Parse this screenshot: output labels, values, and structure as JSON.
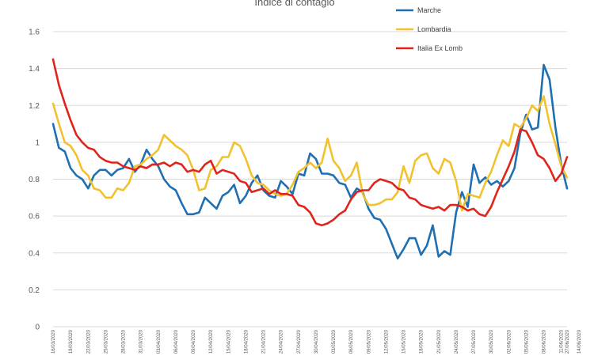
{
  "chart_data": {
    "type": "line",
    "title": "Indice di contagio",
    "xlabel": "",
    "ylabel": "",
    "ylim": [
      0,
      1.6
    ],
    "yticks": [
      0,
      0.2,
      0.4,
      0.6,
      0.8,
      1,
      1.2,
      1.4,
      1.6
    ],
    "ytick_labels": [
      "0",
      "0.2",
      "0.4",
      "0.6",
      "0.8",
      "1",
      "1.2",
      "1.4",
      "1.6"
    ],
    "grid": true,
    "legend_position": "top-right",
    "x_start": "2020-03-16",
    "x_end": "2020-06-27",
    "x_tick_labels": [
      "16/03/2020",
      "19/03/2020",
      "22/03/2020",
      "25/03/2020",
      "28/03/2020",
      "31/03/2020",
      "03/04/2020",
      "06/04/2020",
      "09/04/2020",
      "12/04/2020",
      "15/04/2020",
      "18/04/2020",
      "21/04/2020",
      "24/04/2020",
      "27/04/2020",
      "30/04/2020",
      "03/05/2020",
      "06/05/2020",
      "09/05/2020",
      "12/05/2020",
      "15/05/2020",
      "18/05/2020",
      "21/05/2020",
      "24/05/2020",
      "27/05/2020",
      "30/05/2020",
      "02/06/2020",
      "05/06/2020",
      "08/06/2020",
      "11/06/2020",
      "14/06/2020",
      "17/06/2020",
      "20/06/2020",
      "23/06/2020",
      "26/06/2020",
      "27/06/2020"
    ],
    "series": [
      {
        "name": "Marche",
        "color": "#1f6fb2",
        "points": [
          [
            0,
            1.1
          ],
          [
            1,
            0.97
          ],
          [
            2,
            0.95
          ],
          [
            3,
            0.86
          ],
          [
            4,
            0.82
          ],
          [
            5,
            0.8
          ],
          [
            6,
            0.75
          ],
          [
            7,
            0.82
          ],
          [
            8,
            0.85
          ],
          [
            9,
            0.85
          ],
          [
            10,
            0.82
          ],
          [
            11,
            0.85
          ],
          [
            12,
            0.86
          ],
          [
            13,
            0.91
          ],
          [
            14,
            0.84
          ],
          [
            15,
            0.88
          ],
          [
            16,
            0.96
          ],
          [
            17,
            0.91
          ],
          [
            18,
            0.87
          ],
          [
            19,
            0.8
          ],
          [
            20,
            0.76
          ],
          [
            21,
            0.74
          ],
          [
            22,
            0.67
          ],
          [
            23,
            0.61
          ],
          [
            24,
            0.61
          ],
          [
            25,
            0.62
          ],
          [
            26,
            0.7
          ],
          [
            27,
            0.67
          ],
          [
            28,
            0.64
          ],
          [
            29,
            0.71
          ],
          [
            30,
            0.73
          ],
          [
            31,
            0.77
          ],
          [
            32,
            0.67
          ],
          [
            33,
            0.71
          ],
          [
            34,
            0.78
          ],
          [
            35,
            0.82
          ],
          [
            36,
            0.74
          ],
          [
            37,
            0.71
          ],
          [
            38,
            0.7
          ],
          [
            39,
            0.79
          ],
          [
            40,
            0.76
          ],
          [
            41,
            0.72
          ],
          [
            42,
            0.83
          ],
          [
            43,
            0.82
          ],
          [
            44,
            0.94
          ],
          [
            45,
            0.91
          ],
          [
            46,
            0.83
          ],
          [
            47,
            0.83
          ],
          [
            48,
            0.82
          ],
          [
            49,
            0.78
          ],
          [
            50,
            0.77
          ],
          [
            51,
            0.7
          ],
          [
            52,
            0.75
          ],
          [
            53,
            0.73
          ],
          [
            54,
            0.64
          ],
          [
            55,
            0.59
          ],
          [
            56,
            0.58
          ],
          [
            57,
            0.53
          ],
          [
            58,
            0.45
          ],
          [
            59,
            0.37
          ],
          [
            60,
            0.42
          ],
          [
            61,
            0.48
          ],
          [
            62,
            0.48
          ],
          [
            63,
            0.39
          ],
          [
            64,
            0.44
          ],
          [
            65,
            0.55
          ],
          [
            66,
            0.38
          ],
          [
            67,
            0.41
          ],
          [
            68,
            0.39
          ],
          [
            69,
            0.62
          ],
          [
            70,
            0.73
          ],
          [
            71,
            0.65
          ],
          [
            72,
            0.88
          ],
          [
            73,
            0.78
          ],
          [
            74,
            0.81
          ],
          [
            75,
            0.77
          ],
          [
            76,
            0.79
          ],
          [
            77,
            0.76
          ],
          [
            78,
            0.79
          ],
          [
            79,
            0.86
          ],
          [
            80,
            1.05
          ],
          [
            81,
            1.15
          ],
          [
            82,
            1.07
          ],
          [
            83,
            1.08
          ],
          [
            84,
            1.42
          ],
          [
            85,
            1.34
          ],
          [
            86,
            1.08
          ],
          [
            87,
            0.88
          ],
          [
            88,
            0.75
          ]
        ]
      },
      {
        "name": "Lombardia",
        "color": "#f2c12e",
        "points": [
          [
            0,
            1.21
          ],
          [
            1,
            1.1
          ],
          [
            2,
            1.0
          ],
          [
            3,
            0.98
          ],
          [
            4,
            0.93
          ],
          [
            5,
            0.85
          ],
          [
            6,
            0.82
          ],
          [
            7,
            0.75
          ],
          [
            8,
            0.74
          ],
          [
            9,
            0.7
          ],
          [
            10,
            0.7
          ],
          [
            11,
            0.75
          ],
          [
            12,
            0.74
          ],
          [
            13,
            0.78
          ],
          [
            14,
            0.87
          ],
          [
            15,
            0.88
          ],
          [
            16,
            0.91
          ],
          [
            17,
            0.93
          ],
          [
            18,
            0.96
          ],
          [
            19,
            1.04
          ],
          [
            20,
            1.01
          ],
          [
            21,
            0.98
          ],
          [
            22,
            0.96
          ],
          [
            23,
            0.93
          ],
          [
            24,
            0.85
          ],
          [
            25,
            0.74
          ],
          [
            26,
            0.75
          ],
          [
            27,
            0.85
          ],
          [
            28,
            0.87
          ],
          [
            29,
            0.92
          ],
          [
            30,
            0.92
          ],
          [
            31,
            1.0
          ],
          [
            32,
            0.98
          ],
          [
            33,
            0.91
          ],
          [
            34,
            0.82
          ],
          [
            35,
            0.78
          ],
          [
            36,
            0.77
          ],
          [
            37,
            0.74
          ],
          [
            38,
            0.72
          ],
          [
            39,
            0.71
          ],
          [
            40,
            0.72
          ],
          [
            41,
            0.77
          ],
          [
            42,
            0.84
          ],
          [
            43,
            0.86
          ],
          [
            44,
            0.89
          ],
          [
            45,
            0.86
          ],
          [
            46,
            0.89
          ],
          [
            47,
            1.02
          ],
          [
            48,
            0.9
          ],
          [
            49,
            0.86
          ],
          [
            50,
            0.79
          ],
          [
            51,
            0.82
          ],
          [
            52,
            0.89
          ],
          [
            53,
            0.72
          ],
          [
            54,
            0.66
          ],
          [
            55,
            0.66
          ],
          [
            56,
            0.67
          ],
          [
            57,
            0.69
          ],
          [
            58,
            0.69
          ],
          [
            59,
            0.73
          ],
          [
            60,
            0.87
          ],
          [
            61,
            0.78
          ],
          [
            62,
            0.9
          ],
          [
            63,
            0.93
          ],
          [
            64,
            0.94
          ],
          [
            65,
            0.86
          ],
          [
            66,
            0.83
          ],
          [
            67,
            0.91
          ],
          [
            68,
            0.89
          ],
          [
            69,
            0.79
          ],
          [
            70,
            0.63
          ],
          [
            71,
            0.72
          ],
          [
            72,
            0.71
          ],
          [
            73,
            0.7
          ],
          [
            74,
            0.78
          ],
          [
            75,
            0.84
          ],
          [
            76,
            0.93
          ],
          [
            77,
            1.01
          ],
          [
            78,
            0.98
          ],
          [
            79,
            1.1
          ],
          [
            80,
            1.08
          ],
          [
            81,
            1.13
          ],
          [
            82,
            1.2
          ],
          [
            83,
            1.17
          ],
          [
            84,
            1.25
          ],
          [
            85,
            1.1
          ],
          [
            86,
            0.99
          ],
          [
            87,
            0.87
          ],
          [
            88,
            0.81
          ]
        ]
      },
      {
        "name": "Italia Ex Lomb",
        "color": "#e0241b",
        "points": [
          [
            0,
            1.45
          ],
          [
            1,
            1.31
          ],
          [
            2,
            1.21
          ],
          [
            3,
            1.12
          ],
          [
            4,
            1.04
          ],
          [
            5,
            1.0
          ],
          [
            6,
            0.97
          ],
          [
            7,
            0.96
          ],
          [
            8,
            0.92
          ],
          [
            9,
            0.9
          ],
          [
            10,
            0.89
          ],
          [
            11,
            0.89
          ],
          [
            12,
            0.87
          ],
          [
            13,
            0.86
          ],
          [
            14,
            0.85
          ],
          [
            15,
            0.87
          ],
          [
            16,
            0.86
          ],
          [
            17,
            0.88
          ],
          [
            18,
            0.88
          ],
          [
            19,
            0.89
          ],
          [
            20,
            0.87
          ],
          [
            21,
            0.89
          ],
          [
            22,
            0.88
          ],
          [
            23,
            0.84
          ],
          [
            24,
            0.85
          ],
          [
            25,
            0.84
          ],
          [
            26,
            0.88
          ],
          [
            27,
            0.9
          ],
          [
            28,
            0.83
          ],
          [
            29,
            0.85
          ],
          [
            30,
            0.84
          ],
          [
            31,
            0.83
          ],
          [
            32,
            0.79
          ],
          [
            33,
            0.78
          ],
          [
            34,
            0.73
          ],
          [
            35,
            0.74
          ],
          [
            36,
            0.75
          ],
          [
            37,
            0.72
          ],
          [
            38,
            0.74
          ],
          [
            39,
            0.72
          ],
          [
            40,
            0.72
          ],
          [
            41,
            0.71
          ],
          [
            42,
            0.66
          ],
          [
            43,
            0.65
          ],
          [
            44,
            0.62
          ],
          [
            45,
            0.56
          ],
          [
            46,
            0.55
          ],
          [
            47,
            0.56
          ],
          [
            48,
            0.58
          ],
          [
            49,
            0.61
          ],
          [
            50,
            0.63
          ],
          [
            51,
            0.69
          ],
          [
            52,
            0.73
          ],
          [
            53,
            0.74
          ],
          [
            54,
            0.74
          ],
          [
            55,
            0.78
          ],
          [
            56,
            0.8
          ],
          [
            57,
            0.79
          ],
          [
            58,
            0.78
          ],
          [
            59,
            0.75
          ],
          [
            60,
            0.74
          ],
          [
            61,
            0.7
          ],
          [
            62,
            0.69
          ],
          [
            63,
            0.66
          ],
          [
            64,
            0.65
          ],
          [
            65,
            0.64
          ],
          [
            66,
            0.65
          ],
          [
            67,
            0.63
          ],
          [
            68,
            0.66
          ],
          [
            69,
            0.66
          ],
          [
            70,
            0.65
          ],
          [
            71,
            0.63
          ],
          [
            72,
            0.64
          ],
          [
            73,
            0.61
          ],
          [
            74,
            0.6
          ],
          [
            75,
            0.65
          ],
          [
            76,
            0.73
          ],
          [
            77,
            0.8
          ],
          [
            78,
            0.87
          ],
          [
            79,
            0.95
          ],
          [
            80,
            1.07
          ],
          [
            81,
            1.06
          ],
          [
            82,
            1.0
          ],
          [
            83,
            0.93
          ],
          [
            84,
            0.91
          ],
          [
            85,
            0.86
          ],
          [
            86,
            0.79
          ],
          [
            87,
            0.83
          ],
          [
            88,
            0.92
          ]
        ]
      }
    ]
  }
}
